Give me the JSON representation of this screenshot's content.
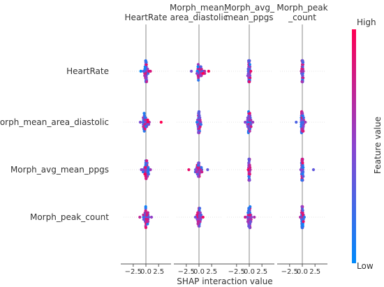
{
  "chart_data": {
    "type": "scatter",
    "title": "",
    "xlabel": "SHAP interaction value",
    "ylabel": "",
    "features": [
      "HeartRate",
      "Morph_mean_area_diastolic",
      "Morph_avg_mean_ppgs",
      "Morph_peak_count"
    ],
    "column_titles": [
      [
        "HeartRate"
      ],
      [
        "Morph_mean_",
        "area_diastolic"
      ],
      [
        "Morph_avg_",
        "mean_ppgs"
      ],
      [
        "Morph_peak",
        "_count"
      ]
    ],
    "xlim": [
      -4.4,
      4.4
    ],
    "xticks": [
      -2.5,
      0.0,
      2.5
    ],
    "xtick_labels": [
      "−2.5",
      "0.0",
      "2.5"
    ],
    "colorbar": {
      "label": "Feature value",
      "high_label": "High",
      "low_label": "Low",
      "low_color": "#008afb",
      "mid_color": "#8a44d0",
      "high_color": "#ff0052"
    },
    "grid": false,
    "legend": "right (colorbar)",
    "panels": [
      [
        {
          "x_range": [
            -0.8,
            0.8
          ],
          "extremes": [
            -1.0,
            0.9
          ],
          "color_trend": 0.6
        },
        {
          "x_range": [
            -0.6,
            1.7
          ],
          "extremes": [
            -1.5,
            1.9
          ],
          "color_trend": 0.5
        },
        {
          "x_range": [
            -0.3,
            0.3
          ],
          "extremes": [
            -0.3,
            0.3
          ],
          "color_trend": 0.3
        },
        {
          "x_range": [
            -0.2,
            0.2
          ],
          "extremes": [
            -0.2,
            0.2
          ],
          "color_trend": 0.3
        }
      ],
      [
        {
          "x_range": [
            -1.0,
            1.0
          ],
          "extremes": [
            -1.1,
            3.0
          ],
          "color_trend": 0.5
        },
        {
          "x_range": [
            -0.4,
            0.4
          ],
          "extremes": [
            -0.4,
            0.4
          ],
          "color_trend": 0.5
        },
        {
          "x_range": [
            -0.6,
            0.6
          ],
          "extremes": [
            -0.8,
            0.7
          ],
          "color_trend": 0.5
        },
        {
          "x_range": [
            -0.4,
            0.4
          ],
          "extremes": [
            -1.2,
            0.6
          ],
          "color_trend": 0.5
        }
      ],
      [
        {
          "x_range": [
            -0.8,
            0.8
          ],
          "extremes": [
            -0.9,
            0.9
          ],
          "color_trend": -0.3
        },
        {
          "x_range": [
            -1.0,
            1.0
          ],
          "extremes": [
            -2.0,
            1.7
          ],
          "color_trend": -0.3
        },
        {
          "x_range": [
            -0.2,
            0.2
          ],
          "extremes": [
            -0.2,
            0.2
          ],
          "color_trend": -0.3
        },
        {
          "x_range": [
            -0.3,
            0.3
          ],
          "extremes": [
            -0.3,
            2.2
          ],
          "color_trend": -0.3
        }
      ],
      [
        {
          "x_range": [
            -0.6,
            0.8
          ],
          "extremes": [
            -1.2,
            1.1
          ],
          "color_trend": 0.0
        },
        {
          "x_range": [
            -0.6,
            0.6
          ],
          "extremes": [
            -0.7,
            0.8
          ],
          "color_trend": 0.0
        },
        {
          "x_range": [
            -0.6,
            0.6
          ],
          "extremes": [
            -0.8,
            1.0
          ],
          "color_trend": 0.0
        },
        {
          "x_range": [
            -0.3,
            0.3
          ],
          "extremes": [
            -0.4,
            0.4
          ],
          "color_trend": 0.0
        }
      ]
    ]
  }
}
